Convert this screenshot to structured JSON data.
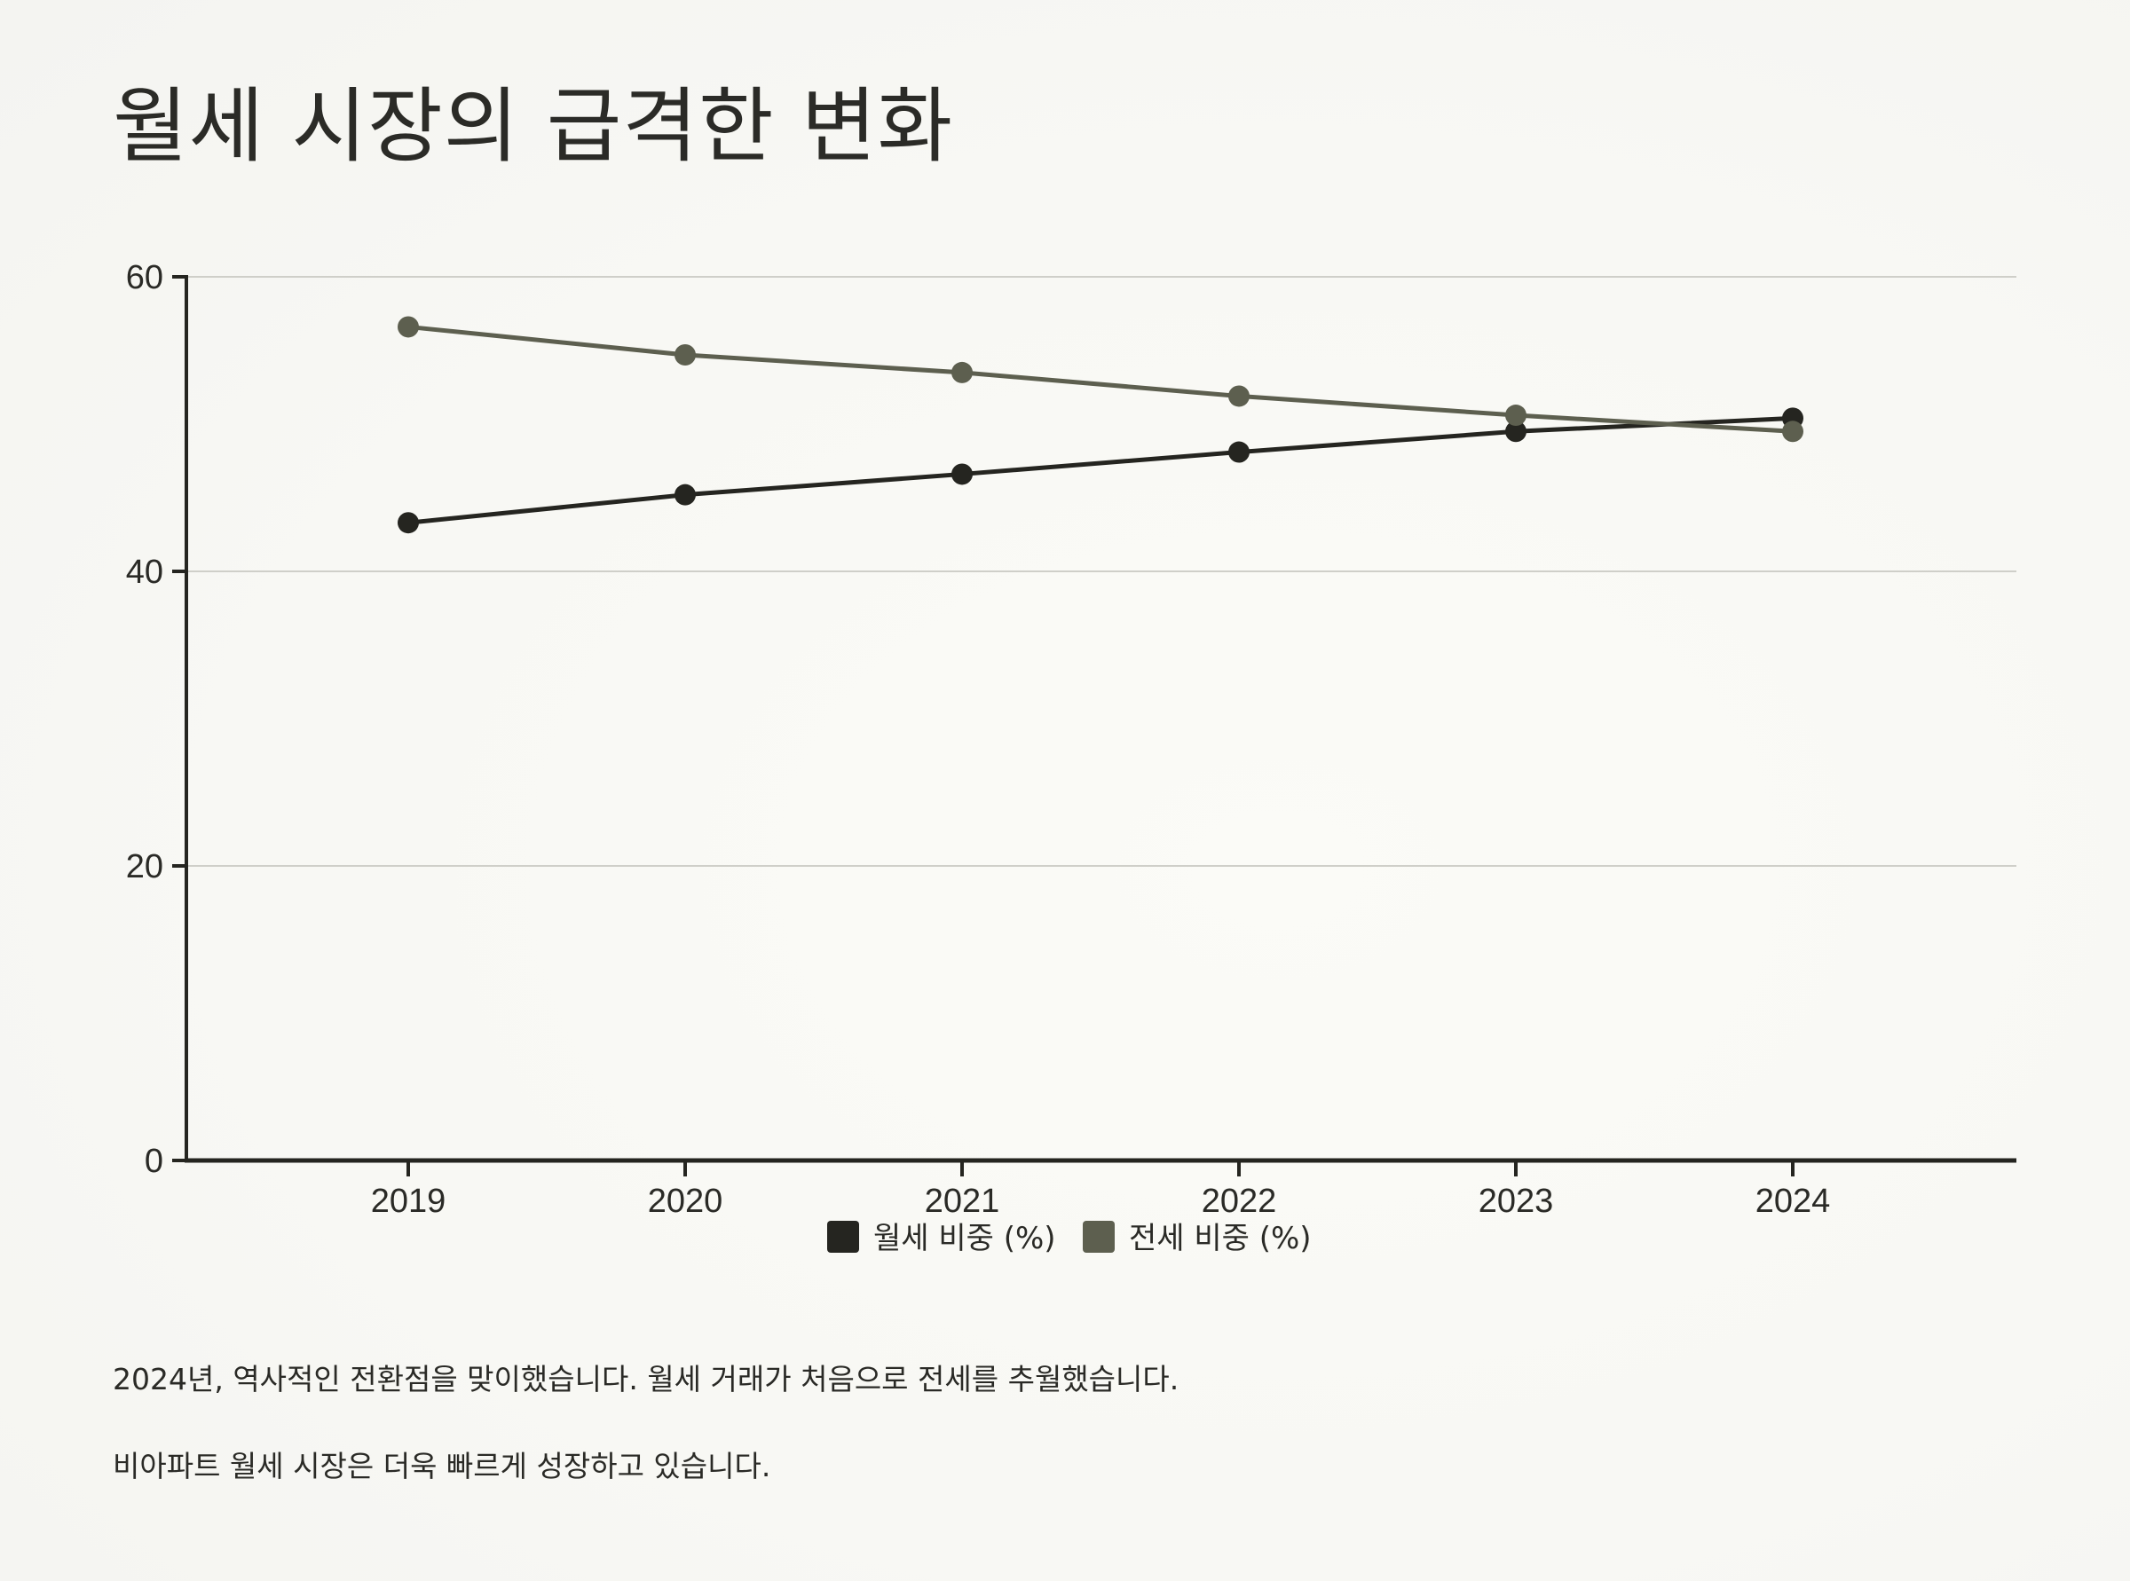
{
  "header": {
    "title": "월세 시장의 급격한 변화"
  },
  "chart_data": {
    "type": "line",
    "title": "월세 시장의 급격한 변화",
    "xlabel": "",
    "ylabel": "",
    "x": [
      "2019",
      "2020",
      "2021",
      "2022",
      "2023",
      "2024"
    ],
    "ylim": [
      0,
      60
    ],
    "yticks": [
      "0",
      "20",
      "40",
      "60"
    ],
    "grid": true,
    "legend": "bottom-center",
    "series": [
      {
        "name": "월세 비중 (%)",
        "values": [
          43.3,
          45.2,
          46.6,
          48.1,
          49.5,
          50.4
        ],
        "color": "#252520"
      },
      {
        "name": "전세 비중 (%)",
        "values": [
          56.6,
          54.7,
          53.5,
          51.9,
          50.6,
          49.5
        ],
        "color": "#5d5f4f"
      }
    ]
  },
  "notes": [
    "2024년, 역사적인 전환점을 맞이했습니다. 월세 거래가 처음으로 전세를 추월했습니다.",
    "비아파트 월세 시장은 더욱 빠르게 성장하고 있습니다."
  ]
}
